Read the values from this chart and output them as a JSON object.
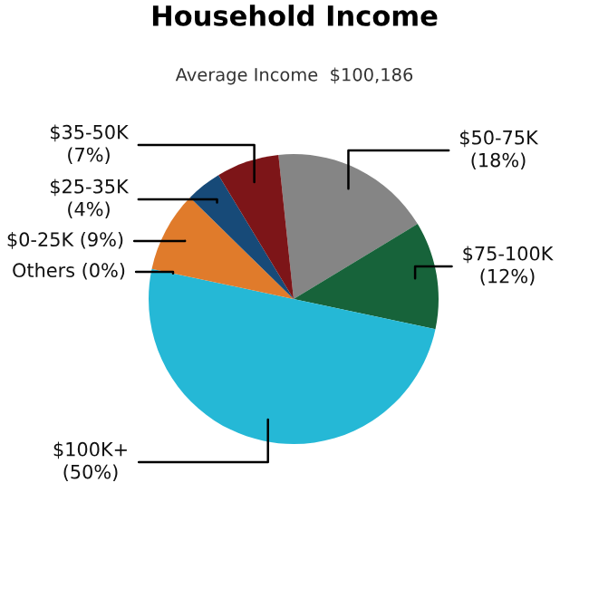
{
  "chart_data": {
    "type": "pie",
    "title": "Household Income",
    "subtitle": "Average Income  $100,186",
    "categories": [
      "$50-75K",
      "$75-100K",
      "$100K+",
      "Others",
      "$0-25K",
      "$25-35K",
      "$35-50K"
    ],
    "values": [
      18,
      12,
      50,
      0,
      9,
      4,
      7
    ],
    "value_labels": [
      "(18%)",
      "(12%)",
      "(50%)",
      "(0%)",
      "(9%)",
      "(4%)",
      "(7%)"
    ],
    "colors": [
      "#858585",
      "#17633a",
      "#25b8d6",
      "#888888",
      "#e07b2b",
      "#174a78",
      "#7d1518"
    ]
  }
}
